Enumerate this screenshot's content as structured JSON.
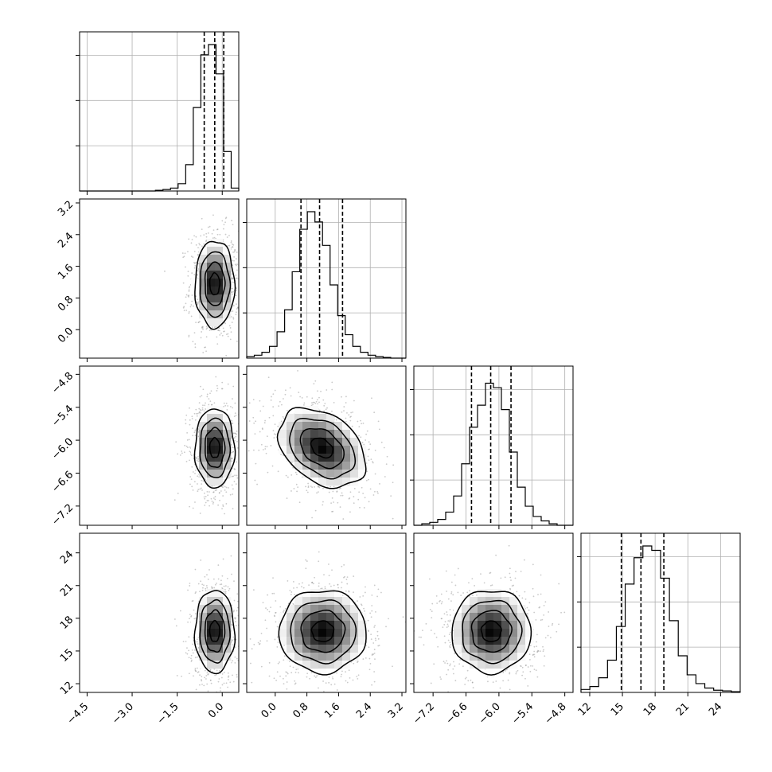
{
  "chart_data": {
    "type": "corner",
    "parameters": 4,
    "grid": true,
    "quantiles": [
      0.16,
      0.5,
      0.84
    ],
    "colors": {
      "line": "#000000",
      "grid": "#b0b0b0",
      "points": "#8a8a8a",
      "density_dark": "#000000",
      "density_light": "#ffffff",
      "background": "#ffffff"
    },
    "variables": [
      {
        "range": [
          -4.75,
          0.55
        ],
        "ticks": [
          -4.5,
          -3.0,
          -1.5,
          0.0
        ],
        "tick_labels": [
          "−4.5",
          "−3.0",
          "−1.5",
          "0.0"
        ],
        "quantile_values": [
          -0.6,
          -0.25,
          0.05
        ],
        "hist": [
          0,
          0,
          0,
          0,
          0,
          0,
          0,
          0,
          0,
          0,
          0.005,
          0.01,
          0.02,
          0.05,
          0.18,
          0.57,
          0.93,
          1.0,
          0.8,
          0.27,
          0.02
        ]
      },
      {
        "range": [
          -0.72,
          3.3
        ],
        "ticks": [
          0.0,
          0.8,
          1.6,
          2.4,
          3.2
        ],
        "tick_labels": [
          "0.0",
          "0.8",
          "1.6",
          "2.4",
          "3.2"
        ],
        "quantile_values": [
          0.65,
          1.12,
          1.7
        ],
        "hist": [
          0.01,
          0.02,
          0.04,
          0.08,
          0.18,
          0.33,
          0.59,
          0.88,
          1.0,
          0.93,
          0.77,
          0.5,
          0.29,
          0.16,
          0.08,
          0.04,
          0.02,
          0.01,
          0.005,
          0,
          0
        ]
      },
      {
        "range": [
          -7.55,
          -4.65
        ],
        "ticks": [
          -7.2,
          -6.6,
          -6.0,
          -5.4,
          -4.8
        ],
        "tick_labels": [
          "−7.2",
          "−6.6",
          "−6.0",
          "−5.4",
          "−4.8"
        ],
        "quantile_values": [
          -6.5,
          -6.15,
          -5.78
        ],
        "hist": [
          0,
          0.01,
          0.02,
          0.04,
          0.09,
          0.2,
          0.42,
          0.67,
          0.82,
          0.97,
          0.94,
          0.79,
          0.5,
          0.26,
          0.13,
          0.06,
          0.03,
          0.01,
          0,
          0
        ]
      },
      {
        "range": [
          11.2,
          25.8
        ],
        "ticks": [
          12,
          15,
          18,
          21,
          24
        ],
        "tick_labels": [
          "12",
          "15",
          "18",
          "21",
          "24"
        ],
        "quantile_values": [
          14.9,
          16.7,
          18.8
        ],
        "hist": [
          0.02,
          0.04,
          0.1,
          0.22,
          0.45,
          0.74,
          0.92,
          1.0,
          0.97,
          0.78,
          0.49,
          0.25,
          0.12,
          0.06,
          0.03,
          0.015,
          0.01,
          0.005
        ]
      }
    ],
    "pairs": [
      {
        "x": 0,
        "y": 1,
        "mean": [
          -0.25,
          1.15
        ],
        "sd": [
          0.33,
          0.55
        ],
        "rho": 0.0,
        "contour_radii": [
          0.5,
          1.0,
          1.5,
          2.0
        ]
      },
      {
        "x": 0,
        "y": 2,
        "mean": [
          -0.25,
          -6.14
        ],
        "sd": [
          0.33,
          0.36
        ],
        "rho": 0.0,
        "contour_radii": [
          0.5,
          1.0,
          1.5,
          2.0
        ]
      },
      {
        "x": 0,
        "y": 3,
        "mean": [
          -0.25,
          16.8
        ],
        "sd": [
          0.33,
          1.9
        ],
        "rho": 0.0,
        "contour_radii": [
          0.5,
          1.0,
          1.5,
          2.0
        ]
      },
      {
        "x": 1,
        "y": 2,
        "mean": [
          1.18,
          -6.14
        ],
        "sd": [
          0.55,
          0.36
        ],
        "rho": -0.35,
        "contour_radii": [
          0.5,
          1.0,
          1.5,
          2.0
        ]
      },
      {
        "x": 1,
        "y": 3,
        "mean": [
          1.2,
          16.8
        ],
        "sd": [
          0.55,
          1.9
        ],
        "rho": 0.0,
        "contour_radii": [
          0.5,
          1.0,
          1.5,
          2.0
        ]
      },
      {
        "x": 2,
        "y": 3,
        "mean": [
          -6.14,
          16.8
        ],
        "sd": [
          0.36,
          1.9
        ],
        "rho": 0.0,
        "contour_radii": [
          0.5,
          1.0,
          1.5,
          2.0
        ]
      }
    ]
  }
}
